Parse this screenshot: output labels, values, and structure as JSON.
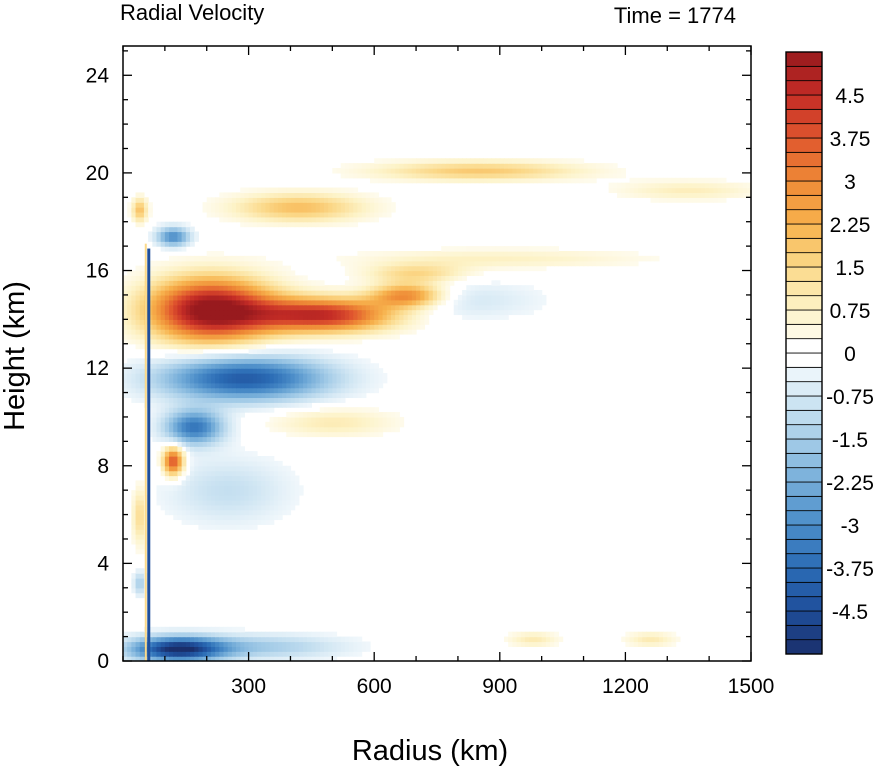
{
  "chart_data": {
    "type": "heatmap",
    "title_left": "Radial Velocity",
    "title_right": "Time = 1774",
    "xlabel": "Radius (km)",
    "ylabel": "Height (km)",
    "xlim": [
      0,
      1500
    ],
    "ylim": [
      0,
      25.2
    ],
    "x_ticks": [
      300,
      600,
      900,
      1200,
      1500
    ],
    "y_ticks": [
      0,
      4,
      8,
      12,
      16,
      20,
      24
    ],
    "colorbar": {
      "min": -5.25,
      "max": 5.25,
      "step": 0.25,
      "labels": [
        "4.5",
        "3.75",
        "3",
        "2.25",
        "1.5",
        "0.75",
        "0",
        "-0.75",
        "-1.5",
        "-2.25",
        "-3",
        "-3.75",
        "-4.5"
      ],
      "label_values": [
        4.5,
        3.75,
        3,
        2.25,
        1.5,
        0.75,
        0,
        -0.75,
        -1.5,
        -2.25,
        -3,
        -3.75,
        -4.5
      ],
      "colors_negative_to_positive": [
        "#1a2f6b",
        "#1f4e9a",
        "#2b6cb5",
        "#4a8cc8",
        "#76aed9",
        "#a6cde8",
        "#d4e8f4",
        "#ffffff",
        "#fdf3c8",
        "#fbd98a",
        "#f7b24d",
        "#ee8a36",
        "#e0562e",
        "#c42c26",
        "#981a1e"
      ]
    },
    "features": [
      {
        "r": 210,
        "z": 14.4,
        "dr": 150,
        "dz": 1.3,
        "v": 5.5
      },
      {
        "r": 480,
        "z": 14.2,
        "dr": 170,
        "dz": 0.7,
        "v": 4.5
      },
      {
        "r": 680,
        "z": 15.0,
        "dr": 90,
        "dz": 0.5,
        "v": 3.2
      },
      {
        "r": 290,
        "z": 11.6,
        "dr": 200,
        "dz": 0.9,
        "v": -4.2
      },
      {
        "r": 170,
        "z": 9.6,
        "dr": 70,
        "dz": 0.7,
        "v": -3.5
      },
      {
        "r": 130,
        "z": 0.5,
        "dr": 110,
        "dz": 0.5,
        "v": -5.0
      },
      {
        "r": 330,
        "z": 0.6,
        "dr": 200,
        "dz": 0.5,
        "v": -1.5
      },
      {
        "r": 120,
        "z": 8.2,
        "dr": 25,
        "dz": 0.6,
        "v": 4.0
      },
      {
        "r": 850,
        "z": 20.1,
        "dr": 250,
        "dz": 0.4,
        "v": 1.8
      },
      {
        "r": 420,
        "z": 18.6,
        "dr": 160,
        "dz": 0.6,
        "v": 2.0
      },
      {
        "r": 1350,
        "z": 19.3,
        "dr": 170,
        "dz": 0.4,
        "v": 0.9
      },
      {
        "r": 900,
        "z": 16.5,
        "dr": 350,
        "dz": 0.4,
        "v": 0.8
      },
      {
        "r": 700,
        "z": 15.9,
        "dr": 120,
        "dz": 0.4,
        "v": 1.5
      },
      {
        "r": 250,
        "z": 7.0,
        "dr": 150,
        "dz": 1.4,
        "v": -1.0
      },
      {
        "r": 120,
        "z": 17.4,
        "dr": 40,
        "dz": 0.4,
        "v": -3.0
      },
      {
        "r": 40,
        "z": 18.5,
        "dr": 18,
        "dz": 0.5,
        "v": 2.0
      },
      {
        "r": 40,
        "z": 6.0,
        "dr": 18,
        "dz": 1.2,
        "v": 1.5
      },
      {
        "r": 40,
        "z": 3.2,
        "dr": 15,
        "dz": 0.5,
        "v": -1.5
      },
      {
        "r": 800,
        "z": 14.8,
        "dr": 200,
        "dz": 0.8,
        "v": -0.8
      },
      {
        "r": 500,
        "z": 9.8,
        "dr": 150,
        "dz": 0.6,
        "v": 1.0
      },
      {
        "r": 980,
        "z": 0.9,
        "dr": 60,
        "dz": 0.3,
        "v": 1.0
      },
      {
        "r": 1260,
        "z": 0.9,
        "dr": 60,
        "dz": 0.3,
        "v": 1.0
      }
    ]
  }
}
